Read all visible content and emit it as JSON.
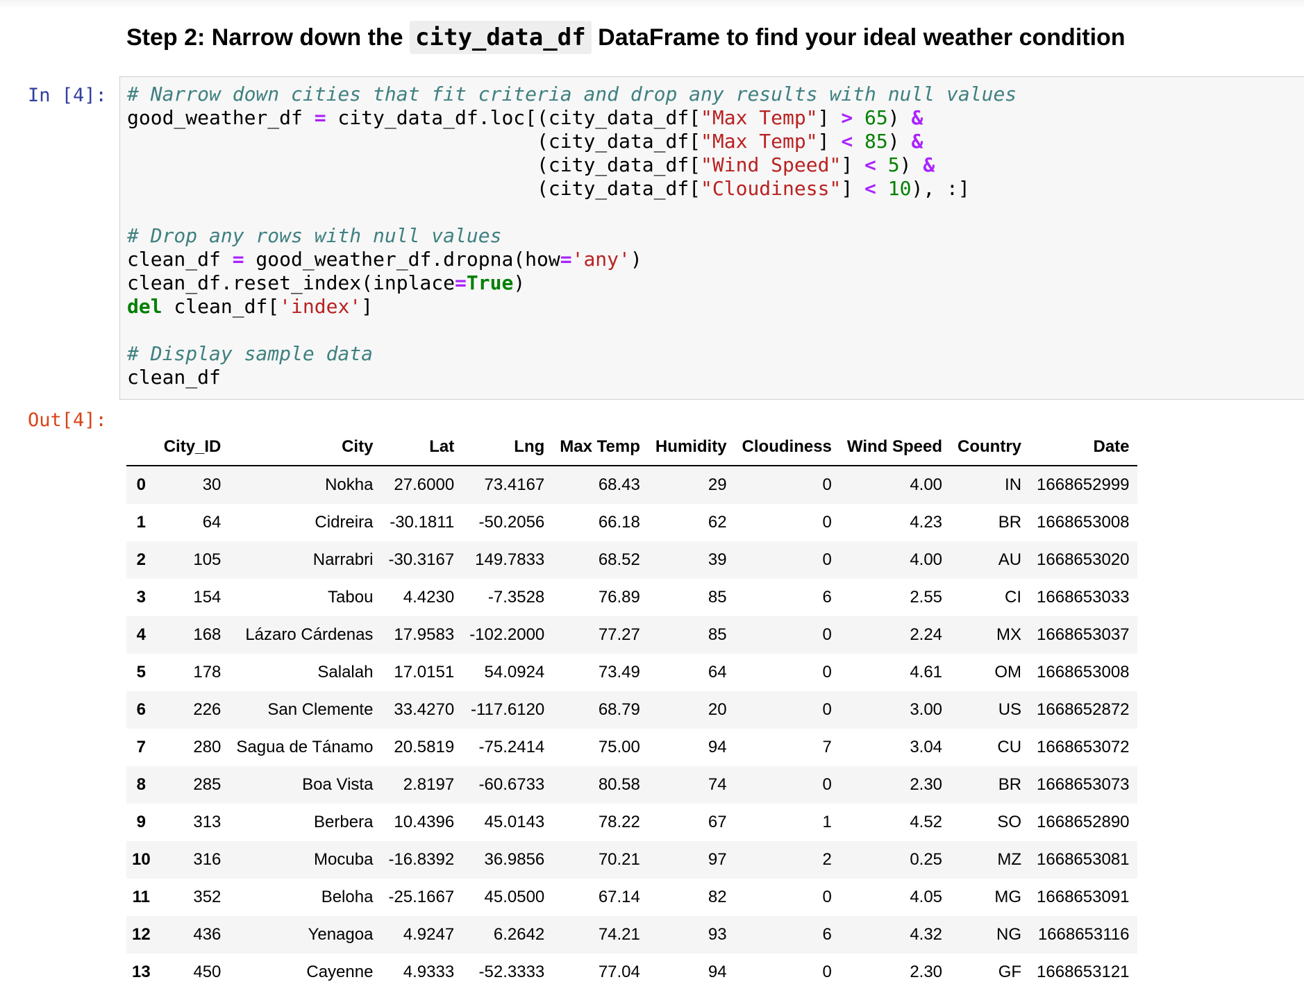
{
  "heading": {
    "prefix": "Step 2: Narrow down the",
    "code": "city_data_df",
    "suffix": "DataFrame to find your ideal weather condition"
  },
  "cell": {
    "in_prompt": "In [4]:",
    "out_prompt": "Out[4]:"
  },
  "code_text": {
    "comment1": "# Narrow down cities that fit criteria and drop any results with null values",
    "comment2": "# Drop any rows with null values",
    "comment3": "# Display sample data",
    "col_max_temp": "\"Max Temp\"",
    "col_wind_speed": "\"Wind Speed\"",
    "col_cloudiness": "\"Cloudiness\"",
    "num_65": "65",
    "num_85": "85",
    "num_5": "5",
    "num_10": "10",
    "str_any": "'any'",
    "str_index": "'index'",
    "kw_true": "True",
    "kw_del": "del"
  },
  "table": {
    "columns": [
      "",
      "City_ID",
      "City",
      "Lat",
      "Lng",
      "Max Temp",
      "Humidity",
      "Cloudiness",
      "Wind Speed",
      "Country",
      "Date"
    ],
    "rows": [
      [
        "0",
        "30",
        "Nokha",
        "27.6000",
        "73.4167",
        "68.43",
        "29",
        "0",
        "4.00",
        "IN",
        "1668652999"
      ],
      [
        "1",
        "64",
        "Cidreira",
        "-30.1811",
        "-50.2056",
        "66.18",
        "62",
        "0",
        "4.23",
        "BR",
        "1668653008"
      ],
      [
        "2",
        "105",
        "Narrabri",
        "-30.3167",
        "149.7833",
        "68.52",
        "39",
        "0",
        "4.00",
        "AU",
        "1668653020"
      ],
      [
        "3",
        "154",
        "Tabou",
        "4.4230",
        "-7.3528",
        "76.89",
        "85",
        "6",
        "2.55",
        "CI",
        "1668653033"
      ],
      [
        "4",
        "168",
        "Lázaro Cárdenas",
        "17.9583",
        "-102.2000",
        "77.27",
        "85",
        "0",
        "2.24",
        "MX",
        "1668653037"
      ],
      [
        "5",
        "178",
        "Salalah",
        "17.0151",
        "54.0924",
        "73.49",
        "64",
        "0",
        "4.61",
        "OM",
        "1668653008"
      ],
      [
        "6",
        "226",
        "San Clemente",
        "33.4270",
        "-117.6120",
        "68.79",
        "20",
        "0",
        "3.00",
        "US",
        "1668652872"
      ],
      [
        "7",
        "280",
        "Sagua de Tánamo",
        "20.5819",
        "-75.2414",
        "75.00",
        "94",
        "7",
        "3.04",
        "CU",
        "1668653072"
      ],
      [
        "8",
        "285",
        "Boa Vista",
        "2.8197",
        "-60.6733",
        "80.58",
        "74",
        "0",
        "2.30",
        "BR",
        "1668653073"
      ],
      [
        "9",
        "313",
        "Berbera",
        "10.4396",
        "45.0143",
        "78.22",
        "67",
        "1",
        "4.52",
        "SO",
        "1668652890"
      ],
      [
        "10",
        "316",
        "Mocuba",
        "-16.8392",
        "36.9856",
        "70.21",
        "97",
        "2",
        "0.25",
        "MZ",
        "1668653081"
      ],
      [
        "11",
        "352",
        "Beloha",
        "-25.1667",
        "45.0500",
        "67.14",
        "82",
        "0",
        "4.05",
        "MG",
        "1668653091"
      ],
      [
        "12",
        "436",
        "Yenagoa",
        "4.9247",
        "6.2642",
        "74.21",
        "93",
        "6",
        "4.32",
        "NG",
        "1668653116"
      ],
      [
        "13",
        "450",
        "Cayenne",
        "4.9333",
        "-52.3333",
        "77.04",
        "94",
        "0",
        "2.30",
        "GF",
        "1668653121"
      ]
    ]
  }
}
